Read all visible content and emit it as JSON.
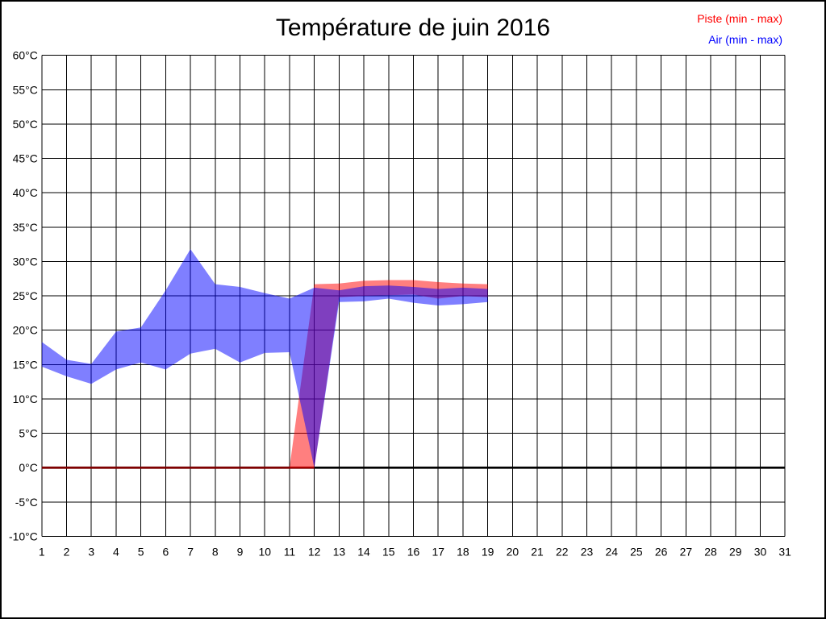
{
  "title": "Température de juin 2016",
  "legend": [
    {
      "label": "Piste (min - max)",
      "color": "#FF0000"
    },
    {
      "label": "Air (min - max)",
      "color": "#0000FF"
    }
  ],
  "chart_data": {
    "type": "area",
    "title": "Température de juin 2016",
    "x_axis": {
      "ticks": [
        1,
        2,
        3,
        4,
        5,
        6,
        7,
        8,
        9,
        10,
        11,
        12,
        13,
        14,
        15,
        16,
        17,
        18,
        19,
        20,
        21,
        22,
        23,
        24,
        25,
        26,
        27,
        28,
        29,
        30,
        31
      ]
    },
    "y_axis": {
      "unit": "°C",
      "ticks": [
        60,
        55,
        50,
        45,
        40,
        35,
        30,
        25,
        20,
        15,
        10,
        5,
        0,
        -5,
        -10
      ]
    },
    "xlim": [
      1,
      31
    ],
    "ylim": [
      -10,
      60
    ],
    "grid": true,
    "grid_color": "#000000",
    "zero_line": {
      "y": 0,
      "color": "#000000"
    },
    "series": [
      {
        "name": "Piste (min - max)",
        "fill": "#FF0000",
        "opacity": 0.5,
        "baseline_segment": {
          "x_start": 1,
          "x_end": 12,
          "y": 0
        },
        "x": [
          1,
          2,
          3,
          4,
          5,
          6,
          7,
          8,
          9,
          10,
          11,
          12,
          13,
          14,
          15,
          16,
          17,
          18,
          19
        ],
        "min": [
          0,
          0,
          0,
          0,
          0,
          0,
          0,
          0,
          0,
          0,
          0,
          0,
          24.8,
          25.0,
          25.1,
          25.2,
          24.6,
          25.0,
          24.8
        ],
        "max": [
          0,
          0,
          0,
          0,
          0,
          0,
          0,
          0,
          0,
          0,
          0,
          26.7,
          26.8,
          27.2,
          27.3,
          27.3,
          27.0,
          26.8,
          26.7
        ]
      },
      {
        "name": "Air (min - max)",
        "fill": "#0000FF",
        "opacity": 0.5,
        "x": [
          1,
          2,
          3,
          4,
          5,
          6,
          7,
          8,
          9,
          10,
          11,
          12,
          13,
          14,
          15,
          16,
          17,
          18,
          19
        ],
        "min": [
          14.7,
          13.3,
          12.2,
          14.3,
          15.3,
          14.3,
          16.6,
          17.3,
          15.3,
          16.7,
          16.8,
          0,
          24.1,
          24.2,
          24.6,
          24.0,
          23.6,
          23.8,
          24.1
        ],
        "max": [
          18.3,
          15.7,
          15.1,
          19.8,
          20.4,
          25.8,
          31.8,
          26.7,
          26.3,
          25.4,
          24.6,
          26.2,
          25.8,
          26.4,
          26.5,
          26.3,
          26.0,
          26.2,
          26.0
        ]
      }
    ]
  }
}
